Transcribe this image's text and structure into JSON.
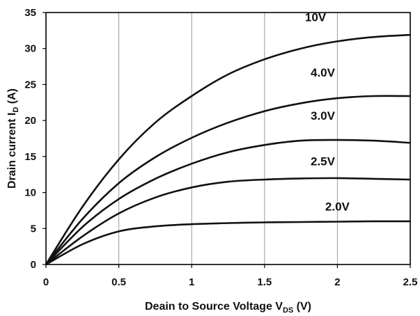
{
  "chart_data": {
    "type": "line",
    "title": "",
    "xlabel": "Deain to Source Voltage V",
    "xlabel_sub": "DS",
    "xlabel_suffix": " (V)",
    "ylabel": "Drain current I",
    "ylabel_sub": "D",
    "ylabel_suffix": " (A)",
    "xlim": [
      0,
      2.5
    ],
    "ylim": [
      0,
      35
    ],
    "xticks": [
      0,
      0.5,
      1,
      1.5,
      2,
      2.5
    ],
    "xtick_labels": [
      "0",
      "0.5",
      "1",
      "1.5",
      "2",
      "2.5"
    ],
    "yticks": [
      0,
      5,
      10,
      15,
      20,
      25,
      30,
      35
    ],
    "ytick_labels": [
      "0",
      "5",
      "10",
      "15",
      "20",
      "25",
      "30",
      "35"
    ],
    "grid": "vertical",
    "legend": "inline labels",
    "series": [
      {
        "name": "10V",
        "x": [
          0,
          0.25,
          0.5,
          0.75,
          1.0,
          1.25,
          1.5,
          1.75,
          2.0,
          2.25,
          2.5
        ],
        "y": [
          0,
          8.0,
          14.6,
          19.7,
          23.4,
          26.4,
          28.5,
          30.0,
          31.0,
          31.6,
          31.9
        ]
      },
      {
        "name": "4.0V",
        "x": [
          0,
          0.25,
          0.5,
          0.75,
          1.0,
          1.25,
          1.5,
          1.75,
          2.0,
          2.25,
          2.5
        ],
        "y": [
          0,
          6.3,
          11.3,
          14.9,
          17.6,
          19.7,
          21.3,
          22.4,
          23.1,
          23.4,
          23.4
        ]
      },
      {
        "name": "3.0V",
        "x": [
          0,
          0.25,
          0.5,
          0.75,
          1.0,
          1.25,
          1.5,
          1.75,
          2.0,
          2.25,
          2.5
        ],
        "y": [
          0,
          5.2,
          9.1,
          11.9,
          14.0,
          15.6,
          16.6,
          17.2,
          17.3,
          17.2,
          16.9
        ]
      },
      {
        "name": "2.5V",
        "x": [
          0,
          0.25,
          0.5,
          0.75,
          1.0,
          1.25,
          1.5,
          1.75,
          2.0,
          2.25,
          2.5
        ],
        "y": [
          0,
          3.9,
          7.1,
          9.3,
          10.7,
          11.5,
          11.8,
          11.95,
          12.0,
          11.9,
          11.8
        ]
      },
      {
        "name": "2.0V",
        "x": [
          0,
          0.25,
          0.5,
          0.75,
          1.0,
          1.25,
          1.5,
          1.75,
          2.0,
          2.25,
          2.5
        ],
        "y": [
          0,
          2.8,
          4.6,
          5.3,
          5.6,
          5.75,
          5.85,
          5.9,
          5.95,
          6.0,
          6.0
        ]
      }
    ],
    "series_label_positions": [
      {
        "name": "10V",
        "x": 1.85,
        "y": 33.8
      },
      {
        "name": "4.0V",
        "x": 1.9,
        "y": 26.1
      },
      {
        "name": "3.0V",
        "x": 1.9,
        "y": 20.1
      },
      {
        "name": "2.5V",
        "x": 1.9,
        "y": 13.8
      },
      {
        "name": "2.0V",
        "x": 2.0,
        "y": 7.5
      }
    ]
  }
}
